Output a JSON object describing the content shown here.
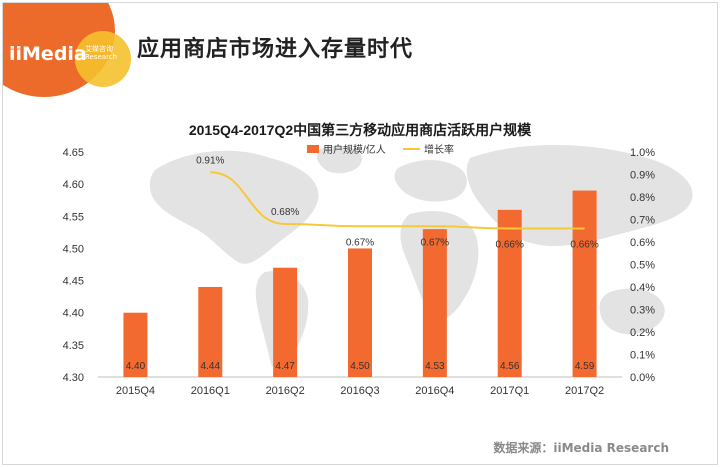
{
  "header": {
    "logo_text": "iiMedia",
    "logo_sub_1": "艾媒咨询",
    "logo_sub_2": "Research",
    "title": "应用商店市场进入存量时代"
  },
  "source": "数据来源：iiMedia Research",
  "colors": {
    "bar": "#f26a30",
    "line": "#f7c83a",
    "map": "#e3e3e3",
    "accent": "#ed6b2a"
  },
  "chart_data": {
    "type": "bar",
    "title": "2015Q4-2017Q2中国第三方移动应用商店活跃用户规模",
    "categories": [
      "2015Q4",
      "2016Q1",
      "2016Q2",
      "2016Q3",
      "2016Q4",
      "2017Q1",
      "2017Q2"
    ],
    "series": [
      {
        "name": "用户规模/亿人",
        "type": "bar",
        "axis": "left",
        "values": [
          4.4,
          4.44,
          4.47,
          4.5,
          4.53,
          4.56,
          4.59
        ],
        "labels": [
          "4.40",
          "4.44",
          "4.47",
          "4.50",
          "4.53",
          "4.56",
          "4.59"
        ]
      },
      {
        "name": "增长率",
        "type": "line",
        "axis": "right",
        "values": [
          null,
          0.91,
          0.68,
          0.67,
          0.67,
          0.66,
          0.66
        ],
        "labels": [
          "",
          "0.91%",
          "0.68%",
          "0.67%",
          "0.67%",
          "0.66%",
          "0.66%"
        ]
      }
    ],
    "ylim": [
      4.3,
      4.65
    ],
    "yticks": [
      "4.30",
      "4.35",
      "4.40",
      "4.45",
      "4.50",
      "4.55",
      "4.60",
      "4.65"
    ],
    "y2lim": [
      0.0,
      1.0
    ],
    "y2ticks": [
      "0.0%",
      "0.1%",
      "0.2%",
      "0.3%",
      "0.4%",
      "0.5%",
      "0.6%",
      "0.7%",
      "0.8%",
      "0.9%",
      "1.0%"
    ],
    "legend": "top-center",
    "grid": false
  }
}
